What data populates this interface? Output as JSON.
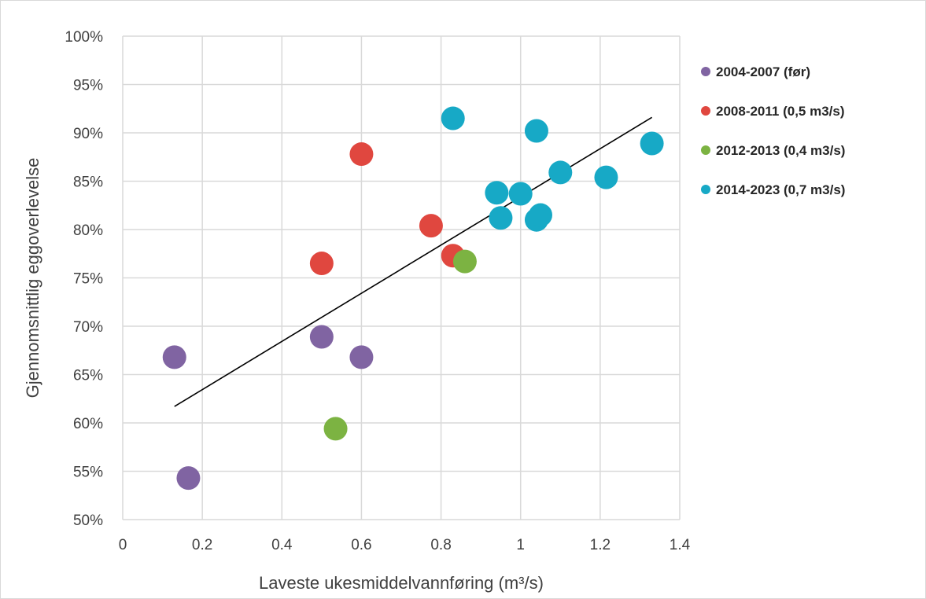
{
  "chart_data": {
    "type": "scatter",
    "xlabel": "Laveste ukesmiddelvannføring (m³/s)",
    "ylabel": "Gjennomsnittlig eggoverlevelse",
    "xlim": [
      0,
      1.4
    ],
    "ylim": [
      0.5,
      1.0
    ],
    "x_ticks": [
      0,
      0.2,
      0.4,
      0.6,
      0.8,
      1,
      1.2,
      1.4
    ],
    "x_tick_labels": [
      "0",
      "0.2",
      "0.4",
      "0.6",
      "0.8",
      "1",
      "1.2",
      "1.4"
    ],
    "y_ticks": [
      0.5,
      0.55,
      0.6,
      0.65,
      0.7,
      0.75,
      0.8,
      0.85,
      0.9,
      0.95,
      1.0
    ],
    "y_tick_labels": [
      "50%",
      "55%",
      "60%",
      "65%",
      "70%",
      "75%",
      "80%",
      "85%",
      "90%",
      "95%",
      "100%"
    ],
    "grid": true,
    "legend_position": "right",
    "series": [
      {
        "name": "2004-2007 (før)",
        "color": "#8064a2",
        "points": [
          [
            0.13,
            0.668
          ],
          [
            0.165,
            0.543
          ],
          [
            0.5,
            0.689
          ],
          [
            0.6,
            0.668
          ]
        ]
      },
      {
        "name": "2008-2011 (0,5 m3/s)",
        "color": "#e0473f",
        "points": [
          [
            0.6,
            0.878
          ],
          [
            0.775,
            0.804
          ],
          [
            0.5,
            0.765
          ],
          [
            0.83,
            0.773
          ]
        ]
      },
      {
        "name": "2012-2013 (0,4 m3/s)",
        "color": "#7cb342",
        "points": [
          [
            0.535,
            0.594
          ],
          [
            0.86,
            0.767
          ]
        ]
      },
      {
        "name": "2014-2023 (0,7 m3/s)",
        "color": "#17a9c6",
        "points": [
          [
            0.83,
            0.915
          ],
          [
            1.04,
            0.902
          ],
          [
            0.94,
            0.838
          ],
          [
            1.0,
            0.837
          ],
          [
            0.95,
            0.812
          ],
          [
            1.04,
            0.81
          ],
          [
            1.05,
            0.815
          ],
          [
            1.1,
            0.859
          ],
          [
            1.215,
            0.854
          ],
          [
            1.33,
            0.889
          ]
        ]
      }
    ],
    "trendline": {
      "color": "#000000",
      "points": [
        [
          0.13,
          0.617
        ],
        [
          1.33,
          0.916
        ]
      ]
    }
  }
}
